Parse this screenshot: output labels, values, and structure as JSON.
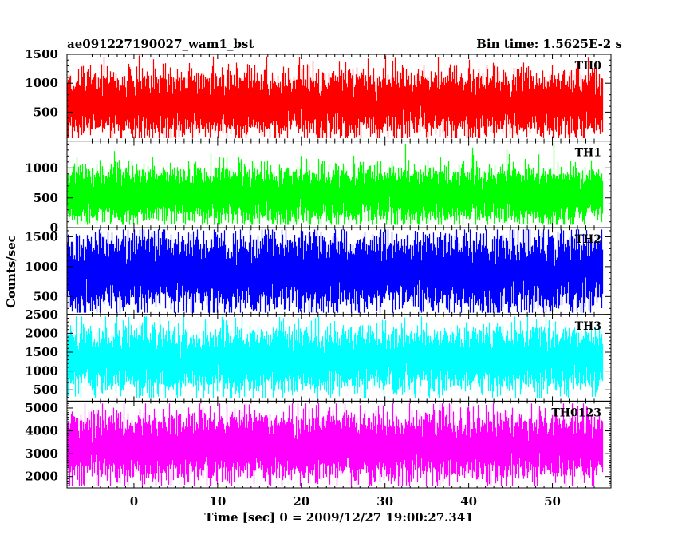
{
  "header": {
    "left": "ae091227190027_wam1_bst",
    "right": "Bin time: 1.5625E-2 s"
  },
  "colors": {
    "TH0": "#ff0000",
    "TH1": "#00ff00",
    "TH2": "#0000ff",
    "TH3": "#00ffff",
    "TH0123": "#ff00ff"
  },
  "chart_data": {
    "type": "line",
    "title": "ae091227190027_wam1_bst",
    "subtitle": "Bin time: 1.5625E-2 s",
    "xlabel": "Time [sec] 0 = 2009/12/27 19:00:27.341",
    "ylabel": "Counts/sec",
    "xlim": [
      -8,
      57
    ],
    "x_range": [
      -8,
      56
    ],
    "x_ticks": [
      0,
      10,
      20,
      30,
      40,
      50
    ],
    "grid": false,
    "bin_time_s": 0.015625,
    "panels": [
      {
        "name": "TH0",
        "ylim": [
          0,
          1500
        ],
        "y_ticks": [
          500,
          1000,
          1500
        ],
        "y_tick_labels": [
          "500",
          "1000",
          "1500"
        ],
        "mean": 650,
        "sigma": 250,
        "min": 50,
        "max": 1480
      },
      {
        "name": "TH1",
        "ylim": [
          0,
          1450
        ],
        "y_ticks": [
          0,
          500,
          1000
        ],
        "y_tick_labels": [
          "0",
          "500",
          "1000"
        ],
        "mean": 550,
        "sigma": 210,
        "min": 50,
        "max": 1420
      },
      {
        "name": "TH2",
        "ylim": [
          200,
          1650
        ],
        "y_ticks": [
          500,
          1000,
          1500
        ],
        "y_tick_labels": [
          "500",
          "1000",
          "1500"
        ],
        "mean": 900,
        "sigma": 280,
        "min": 230,
        "max": 1620
      },
      {
        "name": "TH3",
        "ylim": [
          200,
          2500
        ],
        "y_ticks": [
          500,
          1000,
          1500,
          2000,
          2500
        ],
        "y_tick_labels": [
          "500",
          "1000",
          "1500",
          "2000",
          "2500"
        ],
        "mean": 1300,
        "sigma": 380,
        "min": 280,
        "max": 2450
      },
      {
        "name": "TH0123",
        "ylim": [
          1500,
          5300
        ],
        "y_ticks": [
          2000,
          3000,
          4000,
          5000
        ],
        "y_tick_labels": [
          "2000",
          "3000",
          "4000",
          "5000"
        ],
        "mean": 3300,
        "sigma": 650,
        "min": 1600,
        "max": 5200
      }
    ]
  }
}
